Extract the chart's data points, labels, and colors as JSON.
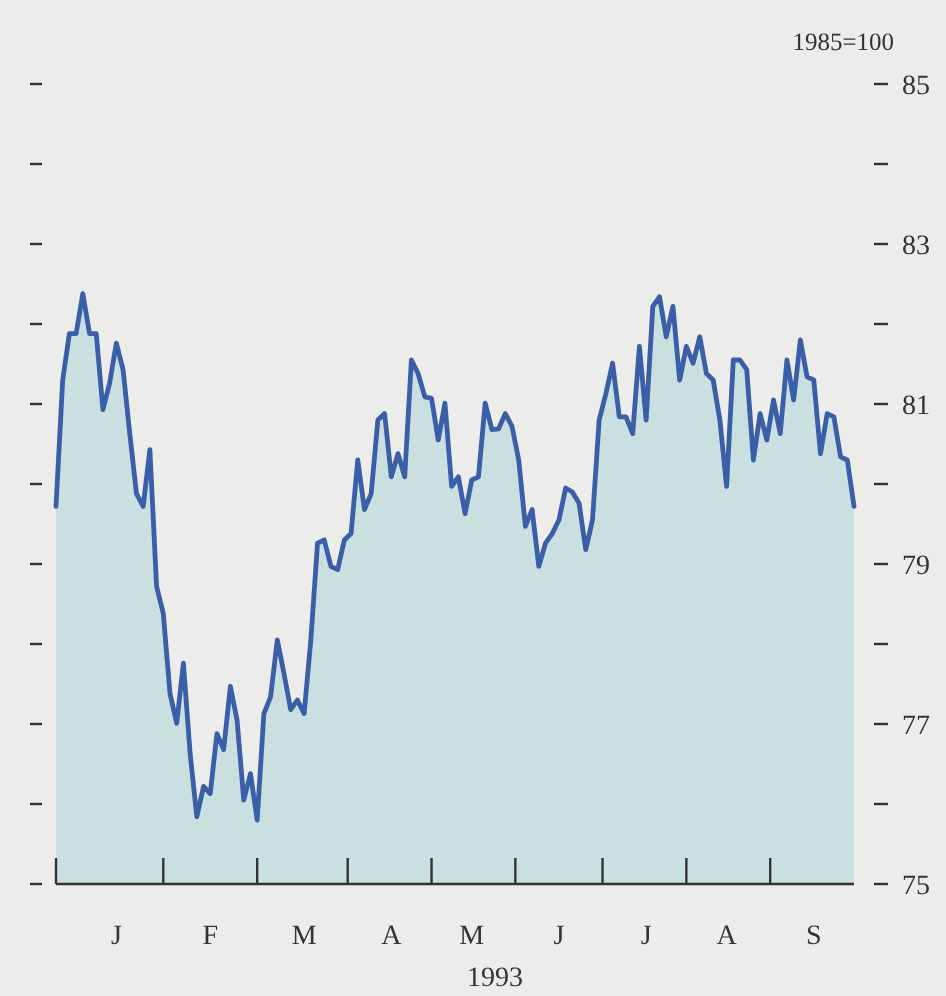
{
  "chart_data": {
    "type": "area",
    "ylabel": "1985=100",
    "xlabel": "1993",
    "categories": [
      null,
      null,
      null,
      null,
      null,
      null,
      null,
      null,
      null,
      "J",
      null,
      null,
      null,
      null,
      null,
      null,
      null,
      null,
      null,
      null,
      null,
      null,
      null,
      "F",
      null,
      null,
      null,
      null,
      null,
      null,
      null,
      null,
      null,
      null,
      null,
      null,
      null,
      "M",
      null,
      null,
      null,
      null,
      null,
      null,
      null,
      null,
      null,
      null,
      null,
      null,
      "A",
      null,
      null,
      null,
      null,
      null,
      null,
      null,
      null,
      null,
      null,
      null,
      "M",
      null,
      null,
      null,
      null,
      null,
      null,
      null,
      null,
      null,
      null,
      null,
      null,
      "J",
      null,
      null,
      null,
      null,
      null,
      null,
      null,
      null,
      null,
      null,
      null,
      null,
      "J",
      null,
      null,
      null,
      null,
      null,
      null,
      null,
      null,
      null,
      null,
      null,
      "A",
      null,
      null,
      null,
      null,
      null,
      null,
      null,
      null,
      null,
      null,
      null,
      null,
      "S",
      null,
      null,
      null,
      null,
      null,
      null
    ],
    "series": [
      {
        "color": "#3a5ea8",
        "values": [
          79.72,
          81.3,
          81.88,
          81.88,
          82.38,
          81.88,
          81.88,
          80.93,
          81.26,
          81.76,
          81.43,
          80.63,
          79.88,
          79.72,
          80.43,
          78.72,
          78.38,
          77.38,
          77.01,
          77.76,
          76.63,
          75.84,
          76.22,
          76.13,
          76.88,
          76.68,
          77.47,
          77.05,
          76.05,
          76.38,
          75.8,
          77.13,
          77.34,
          78.05,
          77.63,
          77.18,
          77.3,
          77.13,
          78.05,
          79.26,
          79.3,
          78.97,
          78.93,
          79.3,
          79.38,
          80.3,
          79.68,
          79.88,
          80.8,
          80.88,
          80.09,
          80.38,
          80.09,
          81.55,
          81.38,
          81.09,
          81.07,
          80.55,
          81.01,
          79.97,
          80.09,
          79.63,
          80.05,
          80.09,
          81.01,
          80.68,
          80.69,
          80.88,
          80.72,
          80.3,
          79.47,
          79.68,
          78.97,
          79.26,
          79.38,
          79.55,
          79.95,
          79.9,
          79.76,
          79.18,
          79.55,
          80.8,
          81.13,
          81.51,
          80.84,
          80.84,
          80.63,
          81.72,
          80.8,
          82.22,
          82.34,
          81.84,
          82.22,
          81.3,
          81.72,
          81.51,
          81.84,
          81.38,
          81.3,
          80.8,
          79.97,
          81.55,
          81.55,
          81.43,
          80.3,
          80.88,
          80.55,
          81.05,
          80.63,
          81.55,
          81.05,
          81.8,
          81.34,
          81.3,
          80.38,
          80.88,
          80.84,
          80.34,
          80.3,
          79.72
        ]
      }
    ],
    "ylim": [
      75,
      85
    ],
    "yticks": [
      75,
      {
        "value": 76,
        "label": null
      },
      77,
      {
        "value": 78,
        "label": null
      },
      79,
      {
        "value": 80,
        "label": null
      },
      81,
      {
        "value": 82,
        "label": null
      },
      83,
      {
        "value": 84,
        "label": null
      },
      85
    ]
  }
}
